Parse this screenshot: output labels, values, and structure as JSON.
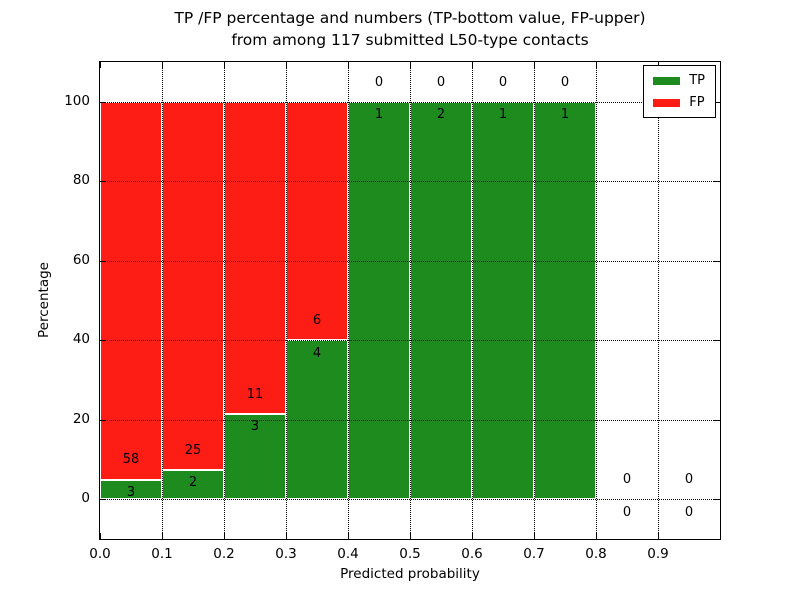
{
  "title": {
    "line1": "TP /FP percentage and numbers (TP-bottom value, FP-upper)",
    "line2": "from among 117 submitted L50-type contacts"
  },
  "axes": {
    "xlabel": "Predicted probability",
    "ylabel": "Percentage"
  },
  "legend": {
    "position": "upper right",
    "entries": [
      {
        "label": "TP",
        "color": "#1e8b1e"
      },
      {
        "label": "FP",
        "color": "#fe1d14"
      }
    ]
  },
  "chart_data": {
    "type": "bar",
    "stacked": true,
    "title": "TP /FP percentage and numbers (TP-bottom value, FP-upper) from among 117 submitted L50-type contacts",
    "xlabel": "Predicted probability",
    "ylabel": "Percentage",
    "total_contacts": 117,
    "bin_width": 0.1,
    "xlim": [
      0.0,
      1.0
    ],
    "ylim": [
      -10,
      110
    ],
    "grid": true,
    "legend_position": "upper right",
    "xticks": [
      {
        "value": 0.0,
        "label": "0.0"
      },
      {
        "value": 0.1,
        "label": "0.1"
      },
      {
        "value": 0.2,
        "label": "0.2"
      },
      {
        "value": 0.3,
        "label": "0.3"
      },
      {
        "value": 0.4,
        "label": "0.4"
      },
      {
        "value": 0.5,
        "label": "0.5"
      },
      {
        "value": 0.6,
        "label": "0.6"
      },
      {
        "value": 0.7,
        "label": "0.7"
      },
      {
        "value": 0.8,
        "label": "0.8"
      },
      {
        "value": 0.9,
        "label": "0.9"
      }
    ],
    "yticks": [
      {
        "value": 0,
        "label": "0"
      },
      {
        "value": 20,
        "label": "20"
      },
      {
        "value": 40,
        "label": "40"
      },
      {
        "value": 60,
        "label": "60"
      },
      {
        "value": 80,
        "label": "80"
      },
      {
        "value": 100,
        "label": "100"
      }
    ],
    "series": [
      {
        "name": "TP",
        "color": "#1e8b1e",
        "counts": [
          3,
          2,
          3,
          4,
          1,
          2,
          1,
          1,
          0,
          0
        ],
        "values_pct": [
          4.92,
          7.41,
          21.43,
          40.0,
          100.0,
          100.0,
          100.0,
          100.0,
          0.0,
          0.0
        ]
      },
      {
        "name": "FP",
        "color": "#fe1d14",
        "counts": [
          58,
          25,
          11,
          6,
          0,
          0,
          0,
          0,
          0,
          0
        ],
        "values_pct": [
          95.08,
          92.59,
          78.57,
          60.0,
          0.0,
          0.0,
          0.0,
          0.0,
          0.0,
          0.0
        ]
      }
    ],
    "bins": [
      {
        "x0": 0.0,
        "x1": 0.1,
        "tp": 3,
        "fp": 58,
        "tp_pct": 4.92,
        "fp_pct": 95.08
      },
      {
        "x0": 0.1,
        "x1": 0.2,
        "tp": 2,
        "fp": 25,
        "tp_pct": 7.41,
        "fp_pct": 92.59
      },
      {
        "x0": 0.2,
        "x1": 0.3,
        "tp": 3,
        "fp": 11,
        "tp_pct": 21.43,
        "fp_pct": 78.57
      },
      {
        "x0": 0.3,
        "x1": 0.4,
        "tp": 4,
        "fp": 6,
        "tp_pct": 40.0,
        "fp_pct": 60.0
      },
      {
        "x0": 0.4,
        "x1": 0.5,
        "tp": 1,
        "fp": 0,
        "tp_pct": 100.0,
        "fp_pct": 0.0
      },
      {
        "x0": 0.5,
        "x1": 0.6,
        "tp": 2,
        "fp": 0,
        "tp_pct": 100.0,
        "fp_pct": 0.0
      },
      {
        "x0": 0.6,
        "x1": 0.7,
        "tp": 1,
        "fp": 0,
        "tp_pct": 100.0,
        "fp_pct": 0.0
      },
      {
        "x0": 0.7,
        "x1": 0.8,
        "tp": 1,
        "fp": 0,
        "tp_pct": 100.0,
        "fp_pct": 0.0
      },
      {
        "x0": 0.8,
        "x1": 0.9,
        "tp": 0,
        "fp": 0,
        "tp_pct": 0.0,
        "fp_pct": 0.0
      },
      {
        "x0": 0.9,
        "x1": 1.0,
        "tp": 0,
        "fp": 0,
        "tp_pct": 0.0,
        "fp_pct": 0.0
      }
    ]
  }
}
